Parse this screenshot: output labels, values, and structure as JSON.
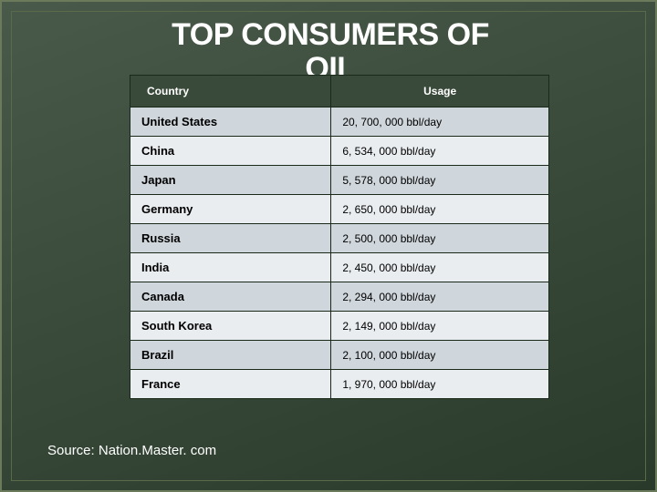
{
  "title_line1": "TOP CONSUMERS OF",
  "title_line2": "OIL",
  "table": {
    "header_country": "Country",
    "header_usage": "Usage",
    "rows": [
      {
        "country": "United States",
        "usage": "20, 700, 000 bbl/day"
      },
      {
        "country": "China",
        "usage": "6, 534, 000 bbl/day"
      },
      {
        "country": "Japan",
        "usage": "5, 578, 000 bbl/day"
      },
      {
        "country": "Germany",
        "usage": "2, 650, 000 bbl/day"
      },
      {
        "country": "Russia",
        "usage": "2, 500, 000 bbl/day"
      },
      {
        "country": "India",
        "usage": "2, 450, 000 bbl/day"
      },
      {
        "country": "Canada",
        "usage": "2, 294, 000 bbl/day"
      },
      {
        "country": "South Korea",
        "usage": "2, 149, 000 bbl/day"
      },
      {
        "country": "Brazil",
        "usage": "2, 100, 000 bbl/day"
      },
      {
        "country": "France",
        "usage": "1, 970, 000 bbl/day"
      }
    ]
  },
  "source_text": "Source:  Nation.Master. com",
  "style": {
    "slide_bg_from": "#4a5a4a",
    "slide_bg_to": "#2a3a2a",
    "title_color": "#ffffff",
    "title_fontsize_pt": 26,
    "header_bg": "#3a4a3a",
    "header_color": "#ffffff",
    "row_odd_bg": "#cfd6dc",
    "row_even_bg": "#e9edf0",
    "cell_border": "#1a2a1a",
    "country_fontsize_pt": 10,
    "usage_fontsize_pt": 9,
    "source_fontsize_pt": 11
  }
}
